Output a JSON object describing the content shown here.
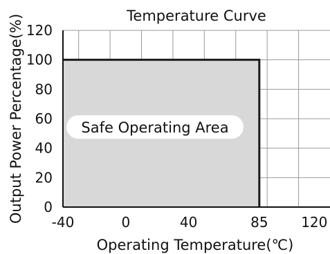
{
  "chart_data": {
    "type": "area",
    "title": "Temperature Curve",
    "xlabel": "Operating Temperature(℃)",
    "ylabel": "Output Power Percentage(%)",
    "xlim": [
      -40,
      130
    ],
    "ylim": [
      0,
      120
    ],
    "x_ticks": [
      -40,
      0,
      40,
      85,
      120
    ],
    "x_tick_labels": [
      "-40",
      "0",
      "40",
      "85",
      "120"
    ],
    "y_ticks": [
      0,
      20,
      40,
      60,
      80,
      100,
      120
    ],
    "y_tick_labels": [
      "0",
      "20",
      "40",
      "60",
      "80",
      "100",
      "120"
    ],
    "grid": true,
    "x": [
      -40,
      85,
      85
    ],
    "y": [
      100,
      100,
      0
    ],
    "annotation": "Safe Operating Area",
    "colors": {
      "fill": "#d8d8d8",
      "line": "#1a1a1a",
      "grid": "#9a9a9a",
      "axis": "#111111"
    }
  }
}
